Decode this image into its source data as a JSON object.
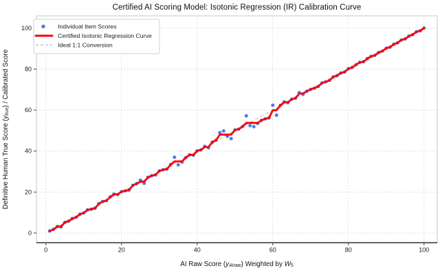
{
  "title": "Certified AI Scoring Model: Isotonic Regression (IR) Calibration Curve",
  "colors": {
    "scatter": "#4169e1",
    "isotonic_curve": "#ff0000",
    "ideal_line": "#b9b9b9",
    "grid": "#d9d9d9",
    "border": "#c9c9c9",
    "bottom_spine": "#4d4d4d",
    "tick": "#444444",
    "tick_label": "#1a1a1a",
    "axis_label": "#111111",
    "legend_border": "#cfcfcf",
    "legend_bg": "#ffffff"
  },
  "chart_data": {
    "type": "scatter",
    "title": "Certified AI Scoring Model: Isotonic Regression (IR) Calibration Curve",
    "xlabel": "AI Raw Score (yAIraw) Weighted by W5",
    "ylabel": "Definitive Human True Score (ytrue) / Calibrated Score",
    "xlabel_parts": [
      {
        "t": "AI Raw Score ("
      },
      {
        "t": "y",
        "italic": true
      },
      {
        "t": "AIraw",
        "sub": true,
        "italic": true
      },
      {
        "t": ") Weighted by "
      },
      {
        "t": "W",
        "italic": true
      },
      {
        "t": "5",
        "sub": true
      }
    ],
    "ylabel_parts": [
      {
        "t": "Definitive Human True Score ("
      },
      {
        "t": "y",
        "italic": true
      },
      {
        "t": "true",
        "sub": true,
        "italic": true
      },
      {
        "t": ") / Calibrated Score"
      }
    ],
    "x_ticks": [
      0,
      20,
      40,
      60,
      80,
      100
    ],
    "y_ticks": [
      0,
      20,
      40,
      60,
      80,
      100
    ],
    "xlim": [
      -2.5,
      103.5
    ],
    "ylim": [
      -4.7,
      106
    ],
    "grid": true,
    "legend": {
      "position": "upper left",
      "entries": [
        {
          "label": "Individual Item Scores",
          "marker": "dot",
          "color": "#4169e1"
        },
        {
          "label": "Certified Isotonic Regression Curve",
          "marker": "line",
          "color": "#ff0000"
        },
        {
          "label": "Ideal 1:1 Conversion",
          "marker": "dashed",
          "color": "#b9b9b9"
        }
      ]
    },
    "ideal_line": {
      "x": [
        1,
        100
      ],
      "y": [
        1,
        100
      ]
    },
    "series": [
      {
        "name": "Individual Item Scores",
        "type": "scatter",
        "color": "#4169e1",
        "x": [
          1,
          2,
          3,
          4,
          5,
          6,
          7,
          8,
          9,
          10,
          11,
          12,
          13,
          14,
          15,
          16,
          17,
          18,
          19,
          20,
          21,
          22,
          23,
          24,
          25,
          26,
          27,
          28,
          29,
          30,
          31,
          32,
          33,
          34,
          35,
          36,
          37,
          38,
          39,
          40,
          41,
          42,
          43,
          44,
          45,
          46,
          47,
          48,
          49,
          50,
          51,
          52,
          53,
          54,
          55,
          56,
          57,
          58,
          59,
          60,
          61,
          62,
          63,
          64,
          65,
          66,
          67,
          68,
          69,
          70,
          71,
          72,
          73,
          74,
          75,
          76,
          77,
          78,
          79,
          80,
          81,
          82,
          83,
          84,
          85,
          86,
          87,
          88,
          89,
          90,
          91,
          92,
          93,
          94,
          95,
          96,
          97,
          98,
          99,
          100
        ],
        "y": [
          1.0,
          1.8,
          3.2,
          3.0,
          5.2,
          5.8,
          7.1,
          7.7,
          9.2,
          9.8,
          11.3,
          11.6,
          12.1,
          14.3,
          15.4,
          15.8,
          17.6,
          19.0,
          18.8,
          20.2,
          20.6,
          21.0,
          23.3,
          24.1,
          25.8,
          24.3,
          27.2,
          28.0,
          28.4,
          30.3,
          30.9,
          31.2,
          33.4,
          37.0,
          33.3,
          34.6,
          36.8,
          38.2,
          38.0,
          40.1,
          40.6,
          42.3,
          41.6,
          44.3,
          45.3,
          49.0,
          49.8,
          47.2,
          46.1,
          50.3,
          50.7,
          52.0,
          57.2,
          52.4,
          51.9,
          53.5,
          55.0,
          55.7,
          56.2,
          62.4,
          57.5,
          62.3,
          64.0,
          63.6,
          65.3,
          65.8,
          68.5,
          67.7,
          69.2,
          70.1,
          70.7,
          71.5,
          73.2,
          73.8,
          74.5,
          76.2,
          76.8,
          78.1,
          78.6,
          80.2,
          80.8,
          82.1,
          83.3,
          83.6,
          85.1,
          86.2,
          86.7,
          88.1,
          88.8,
          90.2,
          90.7,
          92.1,
          92.8,
          94.2,
          94.7,
          96.1,
          96.8,
          98.2,
          98.7,
          100.0
        ]
      },
      {
        "name": "Certified Isotonic Regression Curve",
        "type": "line",
        "color": "#ff0000",
        "note": "isotonic (non-decreasing) fit of the scatter series"
      },
      {
        "name": "Ideal 1:1 Conversion",
        "type": "line",
        "color": "#b9b9b9",
        "style": "dashed"
      }
    ]
  }
}
